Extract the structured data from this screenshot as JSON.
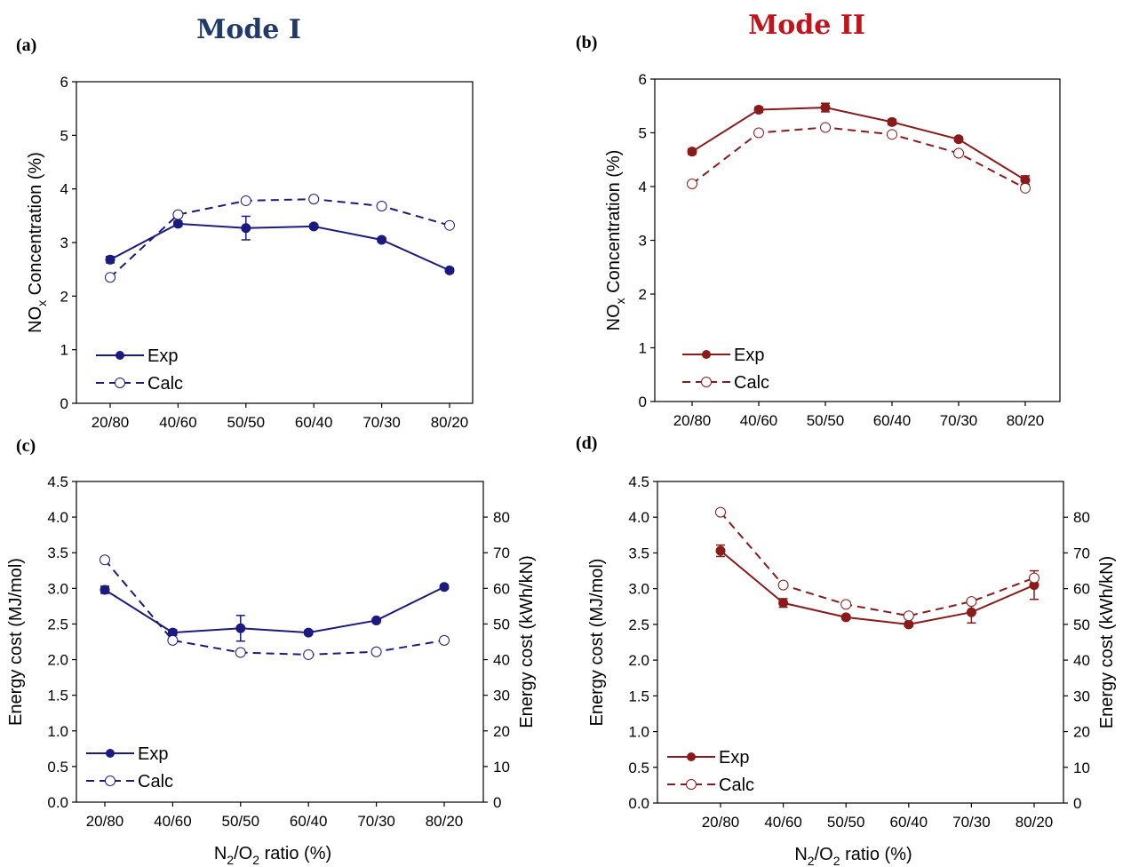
{
  "titles": {
    "left": "Mode I",
    "right": "Mode II"
  },
  "colors": {
    "mode1": "#1a1a80",
    "mode2": "#8b1a1a",
    "title1": "#1f3a6b",
    "title2": "#c0141c"
  },
  "chart_data": [
    {
      "id": "a",
      "panel_label": "(a)",
      "type": "line",
      "categories": [
        "20/80",
        "40/60",
        "50/50",
        "60/40",
        "70/30",
        "80/20"
      ],
      "ylabel_main": "NO",
      "ylabel_sub": "x",
      "ylabel_rest": " Concentration (%)",
      "ylim": [
        0,
        6
      ],
      "yticks": [
        "0",
        "1",
        "2",
        "3",
        "4",
        "5",
        "6"
      ],
      "series": [
        {
          "name": "Exp",
          "values": [
            2.68,
            3.35,
            3.27,
            3.3,
            3.05,
            2.48
          ],
          "errors": [
            0.06,
            0.05,
            0.22,
            0.04,
            0.04,
            0.04
          ],
          "style": "solid",
          "marker": "filled"
        },
        {
          "name": "Calc",
          "values": [
            2.35,
            3.52,
            3.78,
            3.81,
            3.68,
            3.32
          ],
          "style": "dashed",
          "marker": "open"
        }
      ]
    },
    {
      "id": "b",
      "panel_label": "(b)",
      "type": "line",
      "categories": [
        "20/80",
        "40/60",
        "50/50",
        "60/40",
        "70/30",
        "80/20"
      ],
      "ylabel_main": "NO",
      "ylabel_sub": "x",
      "ylabel_rest": " Concentration (%)",
      "ylim": [
        0,
        6
      ],
      "yticks": [
        "0",
        "1",
        "2",
        "3",
        "4",
        "5",
        "6"
      ],
      "series": [
        {
          "name": "Exp",
          "values": [
            4.65,
            5.43,
            5.47,
            5.2,
            4.88,
            4.12
          ],
          "errors": [
            0.05,
            0.05,
            0.08,
            0.05,
            0.04,
            0.08
          ],
          "style": "solid",
          "marker": "filled"
        },
        {
          "name": "Calc",
          "values": [
            4.05,
            5.0,
            5.1,
            4.97,
            4.62,
            3.97
          ],
          "style": "dashed",
          "marker": "open"
        }
      ]
    },
    {
      "id": "c",
      "panel_label": "(c)",
      "type": "line",
      "categories": [
        "20/80",
        "40/60",
        "50/50",
        "60/40",
        "70/30",
        "80/20"
      ],
      "xlabel_main": "N",
      "xlabel_sub1": "2",
      "xlabel_mid": "/O",
      "xlabel_sub2": "2",
      "xlabel_rest": " ratio (%)",
      "ylabel": "Energy cost (MJ/mol)",
      "ylabel_right": "Energy cost (kWh/kN)",
      "ylim": [
        0,
        4.5
      ],
      "yticks": [
        "0.0",
        "0.5",
        "1.0",
        "1.5",
        "2.0",
        "2.5",
        "3.0",
        "3.5",
        "4.0",
        "4.5"
      ],
      "ylim_right": [
        0,
        90
      ],
      "yticks_right": [
        "0",
        "10",
        "20",
        "30",
        "40",
        "50",
        "60",
        "70",
        "80"
      ],
      "series": [
        {
          "name": "Exp",
          "values": [
            2.98,
            2.38,
            2.44,
            2.38,
            2.55,
            3.02
          ],
          "errors": [
            0.05,
            0.04,
            0.18,
            0.03,
            0.03,
            0.03
          ],
          "style": "solid",
          "marker": "filled"
        },
        {
          "name": "Calc",
          "values": [
            3.4,
            2.27,
            2.1,
            2.07,
            2.11,
            2.27
          ],
          "style": "dashed",
          "marker": "open"
        }
      ]
    },
    {
      "id": "d",
      "panel_label": "(d)",
      "type": "line",
      "categories": [
        "20/80",
        "40/60",
        "50/50",
        "60/40",
        "70/30",
        "80/20"
      ],
      "xlabel_main": "N",
      "xlabel_sub1": "2",
      "xlabel_mid": "/O",
      "xlabel_sub2": "2",
      "xlabel_rest": " ratio (%)",
      "ylabel": "Energy cost (MJ/mol)",
      "ylabel_right": "Energy cost (kWh/kN)",
      "ylim": [
        0,
        4.5
      ],
      "yticks": [
        "0.0",
        "0.5",
        "1.0",
        "1.5",
        "2.0",
        "2.5",
        "3.0",
        "3.5",
        "4.0",
        "4.5"
      ],
      "ylim_right": [
        0,
        90
      ],
      "yticks_right": [
        "0",
        "10",
        "20",
        "30",
        "40",
        "50",
        "60",
        "70",
        "80"
      ],
      "series": [
        {
          "name": "Exp",
          "values": [
            3.53,
            2.8,
            2.6,
            2.5,
            2.67,
            3.05
          ],
          "errors": [
            0.08,
            0.06,
            0.03,
            0.03,
            0.15,
            0.2
          ],
          "style": "solid",
          "marker": "filled"
        },
        {
          "name": "Calc",
          "values": [
            4.07,
            3.05,
            2.78,
            2.62,
            2.82,
            3.15
          ],
          "style": "dashed",
          "marker": "open"
        }
      ]
    }
  ]
}
